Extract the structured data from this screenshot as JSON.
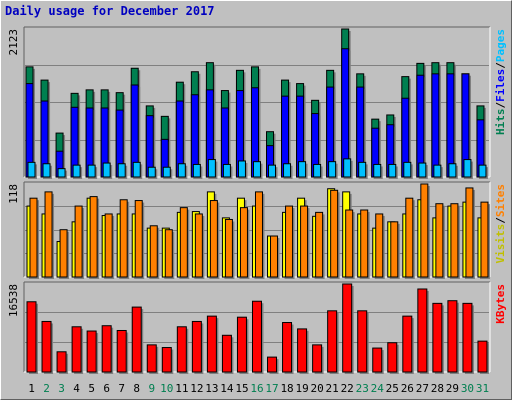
{
  "title": "Daily usage for December 2017",
  "colors": {
    "hits": "#007f50",
    "files": "#0000ff",
    "pages": "#00c0ff",
    "visits": "#ffff00",
    "sites": "#ff8000",
    "kbytes": "#ff0000",
    "weekend_label": "#007f50",
    "weekday_label": "#000000",
    "title": "#0000c0"
  },
  "legend": {
    "panel1": [
      {
        "text": "Hits",
        "color": "#007f50"
      },
      {
        "text": "/",
        "color": "#000000"
      },
      {
        "text": "Files",
        "color": "#0000ff"
      },
      {
        "text": "/",
        "color": "#000000"
      },
      {
        "text": "Pages",
        "color": "#00c0ff"
      }
    ],
    "panel2": [
      {
        "text": "Visits",
        "color": "#c0c000"
      },
      {
        "text": "/",
        "color": "#000000"
      },
      {
        "text": "Sites",
        "color": "#ff8000"
      }
    ],
    "panel3": [
      {
        "text": "KBytes",
        "color": "#ff0000"
      }
    ]
  },
  "chart_data": {
    "type": "bar",
    "title": "Daily usage for December 2017",
    "categories": [
      "1",
      "2",
      "3",
      "4",
      "5",
      "6",
      "7",
      "8",
      "9",
      "10",
      "11",
      "12",
      "13",
      "14",
      "15",
      "16",
      "17",
      "18",
      "19",
      "20",
      "21",
      "22",
      "23",
      "24",
      "25",
      "26",
      "27",
      "28",
      "29",
      "30",
      "31"
    ],
    "weekend_days": [
      "2",
      "3",
      "9",
      "10",
      "16",
      "17",
      "23",
      "24",
      "30",
      "31"
    ],
    "panels": [
      {
        "name": "hits-files-pages",
        "ymax_label": "2123",
        "ylim": [
          0,
          2123
        ],
        "series": [
          {
            "name": "Hits",
            "values": [
              1580,
              1390,
              630,
              1200,
              1250,
              1250,
              1210,
              1560,
              1020,
              870,
              1360,
              1510,
              1640,
              1240,
              1530,
              1580,
              650,
              1390,
              1340,
              1100,
              1530,
              2123,
              1480,
              830,
              890,
              1440,
              1630,
              1640,
              1640,
              1480,
              1020
            ]
          },
          {
            "name": "Files",
            "values": [
              1340,
              1090,
              370,
              1000,
              990,
              990,
              960,
              1320,
              880,
              540,
              1090,
              1180,
              1250,
              990,
              1240,
              1280,
              450,
              1160,
              1160,
              910,
              1290,
              1840,
              1290,
              700,
              750,
              1130,
              1460,
              1480,
              1480,
              1480,
              820
            ]
          },
          {
            "name": "Pages",
            "values": [
              210,
              190,
              120,
              170,
              170,
              200,
              190,
              210,
              140,
              140,
              190,
              180,
              250,
              180,
              230,
              220,
              170,
              190,
              220,
              180,
              220,
              260,
              210,
              180,
              180,
              210,
              200,
              170,
              190,
              250,
              170
            ]
          }
        ]
      },
      {
        "name": "visits-sites",
        "ymax_label": "118",
        "ylim": [
          0,
          118
        ],
        "series": [
          {
            "name": "Visits",
            "values": [
              90,
              80,
              45,
              70,
              100,
              78,
              80,
              80,
              62,
              62,
              82,
              83,
              108,
              75,
              100,
              90,
              52,
              82,
              100,
              77,
              112,
              108,
              80,
              62,
              70,
              80,
              98,
              75,
              90,
              95,
              75
            ]
          },
          {
            "name": "Sites",
            "values": [
              100,
              108,
              60,
              90,
              102,
              80,
              98,
              97,
              65,
              60,
              88,
              80,
              97,
              73,
              88,
              108,
              52,
              90,
              90,
              82,
              110,
              85,
              85,
              80,
              70,
              100,
              118,
              93,
              93,
              113,
              95
            ]
          }
        ]
      },
      {
        "name": "kbytes",
        "ymax_label": "16538",
        "ylim": [
          0,
          16538
        ],
        "series": [
          {
            "name": "KBytes",
            "values": [
              13200,
              9500,
              3800,
              8500,
              7700,
              8700,
              7800,
              12200,
              5100,
              4600,
              8500,
              9500,
              10500,
              6900,
              10300,
              13300,
              2800,
              9300,
              8100,
              5100,
              11500,
              16538,
              11500,
              4500,
              5500,
              10500,
              15600,
              12900,
              13400,
              12900,
              5800
            ]
          }
        ]
      }
    ]
  }
}
